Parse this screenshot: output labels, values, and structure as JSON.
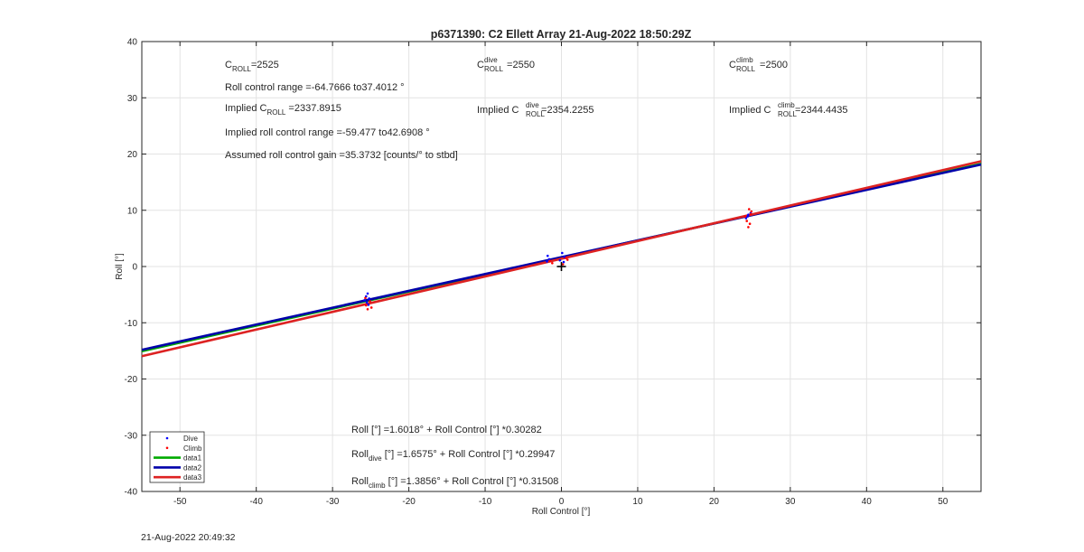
{
  "figure": {
    "timestamp": "21-Aug-2022 20:49:32"
  },
  "chart_data": {
    "type": "scatter",
    "title": "p6371390: C2 Ellett Array 21-Aug-2022 18:50:29Z",
    "xlabel": "Roll Control [°]",
    "ylabel": "Roll [°]",
    "xlim": [
      -55,
      55
    ],
    "ylim": [
      -40,
      40
    ],
    "xticks": [
      -50,
      -40,
      -30,
      -20,
      -10,
      0,
      10,
      20,
      30,
      40,
      50
    ],
    "yticks": [
      -40,
      -30,
      -20,
      -10,
      0,
      10,
      20,
      30,
      40
    ],
    "grid": true,
    "legend": {
      "placement": "bottom-left",
      "entries": [
        {
          "label": "Dive",
          "kind": "marker",
          "color": "#0000ff"
        },
        {
          "label": "Climb",
          "kind": "marker",
          "color": "#ff0000"
        },
        {
          "label": "data1",
          "kind": "line",
          "color": "#00aa00"
        },
        {
          "label": "data2",
          "kind": "line",
          "color": "#0000aa"
        },
        {
          "label": "data3",
          "kind": "line",
          "color": "#dd2222"
        }
      ]
    },
    "series": [
      {
        "name": "Dive",
        "kind": "points",
        "color": "#0000ff",
        "points": [
          [
            -25.4,
            -4.8
          ],
          [
            -25.6,
            -5.3
          ],
          [
            -25.2,
            -5.7
          ],
          [
            -25.8,
            -6.0
          ],
          [
            -25.5,
            -6.4
          ],
          [
            -25.3,
            -6.8
          ],
          [
            -1.8,
            1.9
          ],
          [
            -1.6,
            1.3
          ],
          [
            -1.9,
            0.9
          ],
          [
            0.1,
            2.4
          ],
          [
            0.4,
            1.7
          ],
          [
            -0.2,
            1.1
          ],
          [
            0.3,
            0.8
          ],
          [
            24.2,
            8.6
          ],
          [
            24.5,
            9.2
          ],
          [
            24.8,
            9.5
          ],
          [
            24.4,
            8.9
          ]
        ]
      },
      {
        "name": "Climb",
        "kind": "points",
        "color": "#ff0000",
        "points": [
          [
            -25.7,
            -5.6
          ],
          [
            -25.1,
            -6.2
          ],
          [
            -25.6,
            -6.9
          ],
          [
            -24.9,
            -7.3
          ],
          [
            -25.4,
            -7.6
          ],
          [
            -1.5,
            1.0
          ],
          [
            -1.2,
            0.6
          ],
          [
            0.6,
            1.5
          ],
          [
            0.2,
            0.4
          ],
          [
            0.8,
            1.2
          ],
          [
            24.6,
            10.2
          ],
          [
            24.9,
            9.8
          ],
          [
            24.3,
            8.1
          ],
          [
            24.7,
            7.6
          ],
          [
            24.5,
            7.0
          ],
          [
            24.1,
            8.9
          ],
          [
            24.8,
            9.3
          ]
        ]
      },
      {
        "name": "data1",
        "kind": "line",
        "color": "#00aa00",
        "intercept": 1.6018,
        "slope": 0.30282
      },
      {
        "name": "data2",
        "kind": "line",
        "color": "#0000aa",
        "intercept": 1.6575,
        "slope": 0.29947
      },
      {
        "name": "data3",
        "kind": "line",
        "color": "#dd2222",
        "intercept": 1.3856,
        "slope": 0.31508
      }
    ],
    "marker": {
      "x": 0,
      "y": 0,
      "symbol": "+"
    },
    "annotations": {
      "c_roll": {
        "label": "C",
        "sub": "ROLL",
        "value": "=2525"
      },
      "range": "Roll control range =-64.7666 to37.4012 °",
      "implied_c": {
        "prefix": "Implied C",
        "sub": "ROLL",
        "value": " =2337.8915"
      },
      "implied_range": "Implied roll control range =-59.477 to42.6908 °",
      "gain": "Assumed roll control gain =35.3732 [counts/° to stbd]",
      "c_dive": {
        "label": "C",
        "sup": "dive",
        "sub": "ROLL",
        "value": " =2550"
      },
      "implied_dive": {
        "prefix": "Implied C",
        "sup": "dive",
        "sub": "ROLL",
        "value": " =2354.2255"
      },
      "c_climb": {
        "label": "C",
        "sup": "climb",
        "sub": "ROLL",
        "value": " =2500"
      },
      "implied_climb": {
        "prefix": "Implied C",
        "sup": "climb",
        "sub": "ROLL",
        "value": " =2344.4435"
      },
      "fit_all": {
        "head": "Roll",
        "sub": "",
        "tail": " [°] =1.6018° + Roll Control [°] *0.30282"
      },
      "fit_dive": {
        "head": "Roll",
        "sub": "dive",
        "tail": " [°] =1.6575° + Roll Control [°] *0.29947"
      },
      "fit_climb": {
        "head": "Roll",
        "sub": "climb",
        "tail": " [°] =1.3856° + Roll Control [°] *0.31508"
      }
    }
  }
}
